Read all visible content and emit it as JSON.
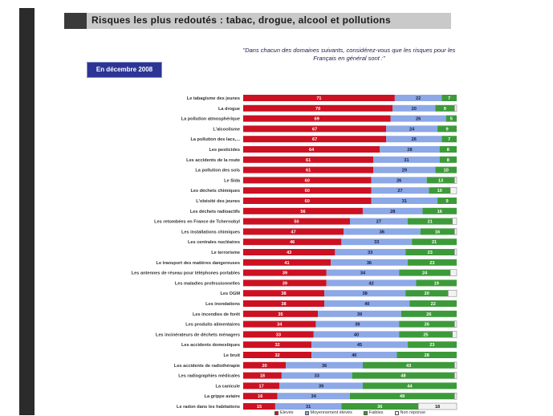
{
  "header": {
    "title": "Risques les plus redoutés : tabac, drogue, alcool et pollutions",
    "question": "\"Dans chacun des domaines suivants, considérez-vous que les risques pour les Français en général sont :\"",
    "date_badge": "En décembre 2008"
  },
  "colors": {
    "eleves": "#cc1122",
    "moyennement": "#8da8e6",
    "faibles": "#3d9a3a",
    "non_reponse": "#f2f2f2",
    "title_bg": "#c9c9c9",
    "badge_bg": "#2c3595"
  },
  "legend": [
    {
      "label": "Elevés",
      "color": "#cc1122"
    },
    {
      "label": "Moyennement élevés",
      "color": "#8da8e6"
    },
    {
      "label": "Faibles",
      "color": "#3d9a3a"
    },
    {
      "label": "Non réponse",
      "color": "#f2f2f2"
    }
  ],
  "chart_data": {
    "type": "bar",
    "orientation": "horizontal",
    "stacked": true,
    "xlim": [
      0,
      100
    ],
    "categories": [
      "Le tabagisme des jeunes",
      "La drogue",
      "La pollution atmosphérique",
      "L'alcoolisme",
      "La pollution des lacs,...",
      "Les pesticides",
      "Les accidents de la route",
      "La pollution des sols",
      "Le Sida",
      "Les déchets chimiques",
      "L'obésité des jeunes",
      "Les déchets radioactifs",
      "Les retombées en France de Tchernobyl",
      "Les installations chimiques",
      "Les centrales nucléaires",
      "Le terrorisme",
      "Le transport des matières dangereuses",
      "Les antennes de réseau pour téléphones portables",
      "Les maladies professionnelles",
      "Les OGM",
      "Les inondations",
      "Les incendies de forêt",
      "Les produits alimentaires",
      "Les incinérateurs de déchets ménagers",
      "Les accidents domestiques",
      "Le bruit",
      "Les accidents de radiothérapie",
      "Les radiographies médicales",
      "La canicule",
      "La grippe aviaire",
      "Le radon dans les habitations"
    ],
    "series": [
      {
        "name": "Elevés",
        "color": "#cc1122",
        "values": [
          71,
          70,
          69,
          67,
          67,
          64,
          61,
          61,
          60,
          60,
          60,
          56,
          50,
          47,
          46,
          43,
          41,
          39,
          39,
          38,
          38,
          35,
          34,
          33,
          32,
          32,
          20,
          18,
          17,
          16,
          15
        ]
      },
      {
        "name": "Moyennement élevés",
        "color": "#8da8e6",
        "values": [
          22,
          20,
          26,
          24,
          26,
          28,
          31,
          29,
          26,
          27,
          31,
          28,
          27,
          36,
          33,
          33,
          36,
          34,
          42,
          38,
          40,
          39,
          39,
          40,
          45,
          40,
          36,
          33,
          39,
          34,
          31
        ]
      },
      {
        "name": "Faibles",
        "color": "#3d9a3a",
        "values": [
          7,
          9,
          5,
          9,
          7,
          8,
          8,
          10,
          13,
          10,
          9,
          16,
          21,
          16,
          21,
          23,
          23,
          24,
          19,
          20,
          22,
          26,
          26,
          25,
          23,
          28,
          43,
          48,
          44,
          49,
          36
        ]
      },
      {
        "name": "Non réponse",
        "color": "#f2f2f2",
        "values": [
          0,
          1,
          0,
          0,
          0,
          0,
          0,
          0,
          1,
          3,
          0,
          0,
          2,
          1,
          0,
          1,
          0,
          3,
          0,
          4,
          0,
          0,
          1,
          2,
          0,
          0,
          1,
          1,
          0,
          1,
          18
        ]
      }
    ]
  }
}
